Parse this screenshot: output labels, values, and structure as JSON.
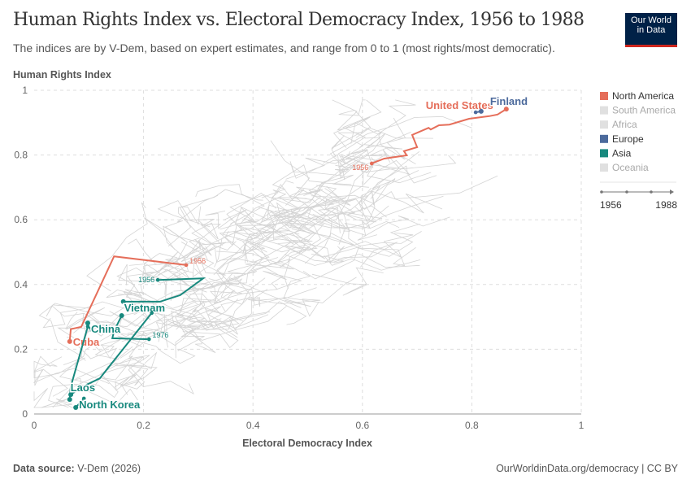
{
  "header": {
    "title": "Human Rights Index vs. Electoral Democracy Index, 1956 to 1988",
    "subtitle": "The indices are by V-Dem, based on expert estimates, and range from 0 to 1 (most rights/most democratic).",
    "logo_line1": "Our World",
    "logo_line2": "in Data"
  },
  "footer": {
    "source_label": "Data source:",
    "source": "V-Dem (2026)",
    "link": "OurWorldinData.org/democracy | CC BY"
  },
  "chart_data": {
    "type": "scatter",
    "title": "Human Rights Index vs. Electoral Democracy Index, 1956 to 1988",
    "xlabel": "Electoral Democracy Index",
    "ylabel": "Human Rights Index",
    "xlim": [
      0,
      1
    ],
    "ylim": [
      0,
      1
    ],
    "xticks": [
      "0",
      "0.2",
      "0.4",
      "0.6",
      "0.8",
      "1"
    ],
    "yticks": [
      "0",
      "0.2",
      "0.4",
      "0.6",
      "0.8",
      "1"
    ],
    "grid": true,
    "legend_placement": "right",
    "time_range": {
      "start": "1956",
      "end": "1988"
    },
    "legend": [
      {
        "name": "North America",
        "color": "#e56e5a",
        "active": true
      },
      {
        "name": "South America",
        "color": "#e0e0e0",
        "active": false
      },
      {
        "name": "Africa",
        "color": "#e0e0e0",
        "active": false
      },
      {
        "name": "Europe",
        "color": "#4c6a9c",
        "active": true
      },
      {
        "name": "Asia",
        "color": "#18897e",
        "active": true
      },
      {
        "name": "Oceania",
        "color": "#e0e0e0",
        "active": false
      }
    ],
    "series": [
      {
        "name": "United States",
        "color": "#e56e5a",
        "start_label": "1956",
        "points": [
          [
            0.617,
            0.774
          ],
          [
            0.64,
            0.789
          ],
          [
            0.681,
            0.799
          ],
          [
            0.676,
            0.812
          ],
          [
            0.7,
            0.824
          ],
          [
            0.691,
            0.862
          ],
          [
            0.721,
            0.884
          ],
          [
            0.725,
            0.879
          ],
          [
            0.74,
            0.892
          ],
          [
            0.759,
            0.894
          ],
          [
            0.795,
            0.912
          ],
          [
            0.832,
            0.92
          ],
          [
            0.847,
            0.925
          ],
          [
            0.863,
            0.942
          ]
        ]
      },
      {
        "name": "Finland",
        "color": "#4c6a9c",
        "start_label": "",
        "points": [
          [
            0.807,
            0.932
          ],
          [
            0.817,
            0.935
          ]
        ]
      },
      {
        "name": "Cuba",
        "color": "#e56e5a",
        "start_label": "1956",
        "points": [
          [
            0.278,
            0.46
          ],
          [
            0.146,
            0.487
          ],
          [
            0.086,
            0.269
          ],
          [
            0.067,
            0.262
          ],
          [
            0.065,
            0.224
          ]
        ]
      },
      {
        "name": "Vietnam",
        "color": "#18897e",
        "start_label": "1956",
        "points": [
          [
            0.226,
            0.414
          ],
          [
            0.309,
            0.419
          ],
          [
            0.267,
            0.367
          ],
          [
            0.23,
            0.347
          ],
          [
            0.163,
            0.347
          ]
        ]
      },
      {
        "name": "",
        "color": "#18897e",
        "start_label": "1976",
        "points": [
          [
            0.21,
            0.231
          ],
          [
            0.143,
            0.234
          ],
          [
            0.146,
            0.256
          ],
          [
            0.16,
            0.304
          ]
        ]
      },
      {
        "name": "China",
        "color": "#18897e",
        "start_label": "",
        "points": [
          [
            0.105,
            0.26
          ],
          [
            0.1,
            0.268
          ],
          [
            0.098,
            0.281
          ]
        ]
      },
      {
        "name": "",
        "color": "#18897e",
        "start_label": "",
        "points": [
          [
            0.215,
            0.312
          ],
          [
            0.12,
            0.11
          ],
          [
            0.089,
            0.085
          ],
          [
            0.067,
            0.06
          ]
        ]
      },
      {
        "name": "Laos",
        "color": "#18897e",
        "start_label": "",
        "points": [
          [
            0.098,
            0.27
          ],
          [
            0.067,
            0.085
          ],
          [
            0.065,
            0.045
          ]
        ]
      },
      {
        "name": "North Korea",
        "color": "#18897e",
        "start_label": "",
        "points": [
          [
            0.091,
            0.048
          ],
          [
            0.076,
            0.02
          ]
        ]
      }
    ]
  }
}
